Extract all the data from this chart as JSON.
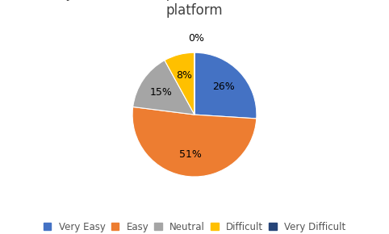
{
  "labels": [
    "Very Easy",
    "Easy",
    "Neutral",
    "Difficult",
    "Very Difficult"
  ],
  "values": [
    26,
    51,
    15,
    8,
    0.001
  ],
  "display_pcts": [
    "26%",
    "51%",
    "15%",
    "8%",
    "0%"
  ],
  "colors": [
    "#4472C4",
    "#ED7D31",
    "#A5A5A5",
    "#FFC000",
    "#264478"
  ],
  "background_color": "#FFFFFF",
  "title_fontsize": 12,
  "legend_fontsize": 8.5
}
